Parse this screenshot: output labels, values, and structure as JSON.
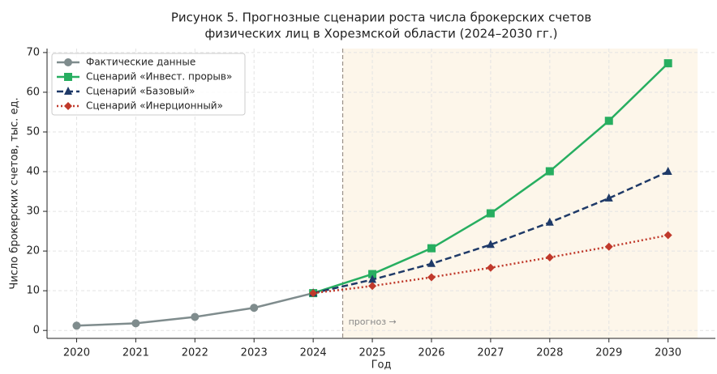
{
  "chart_data": {
    "type": "line",
    "title": [
      "Рисунок 5. Прогнозные сценарии роста числа брокерских счетов",
      "физических лиц в Хорезмской области (2024–2030 гг.)"
    ],
    "xlabel": "Год",
    "ylabel": "Число брокерских счетов, тыс. ед.",
    "x": [
      2020,
      2021,
      2022,
      2023,
      2024,
      2025,
      2026,
      2027,
      2028,
      2029,
      2030
    ],
    "series": [
      {
        "name": "Фактические данные",
        "color": "#7f8c8d",
        "marker": "circle",
        "dash": "solid",
        "values": [
          1.2,
          1.8,
          3.4,
          5.7,
          9.4,
          null,
          null,
          null,
          null,
          null,
          null
        ]
      },
      {
        "name": "Сценарий «Инвест. прорыв»",
        "color": "#27ae60",
        "marker": "square",
        "dash": "solid",
        "values": [
          null,
          null,
          null,
          null,
          9.4,
          14.2,
          20.7,
          29.5,
          40.1,
          52.8,
          67.3
        ]
      },
      {
        "name": "Сценарий «Базовый»",
        "color": "#1f3a68",
        "marker": "triangle",
        "dash": "dashed",
        "values": [
          null,
          null,
          null,
          null,
          9.4,
          12.8,
          16.8,
          21.6,
          27.2,
          33.3,
          40.0
        ]
      },
      {
        "name": "Сценарий «Инерционный»",
        "color": "#c0392b",
        "marker": "diamond",
        "dash": "dotted",
        "values": [
          null,
          null,
          null,
          null,
          9.4,
          11.2,
          13.4,
          15.8,
          18.4,
          21.1,
          24.0
        ]
      }
    ],
    "forecast_start": 2024.5,
    "forecast_end": 2030.5,
    "forecast_label": "прогноз →",
    "xlim": [
      2019.5,
      2030.8
    ],
    "ylim": [
      -2,
      71
    ],
    "xticks": [
      2020,
      2021,
      2022,
      2023,
      2024,
      2025,
      2026,
      2027,
      2028,
      2029,
      2030
    ],
    "yticks": [
      0,
      10,
      20,
      30,
      40,
      50,
      60,
      70
    ],
    "grid": true,
    "legend": "upper left"
  }
}
